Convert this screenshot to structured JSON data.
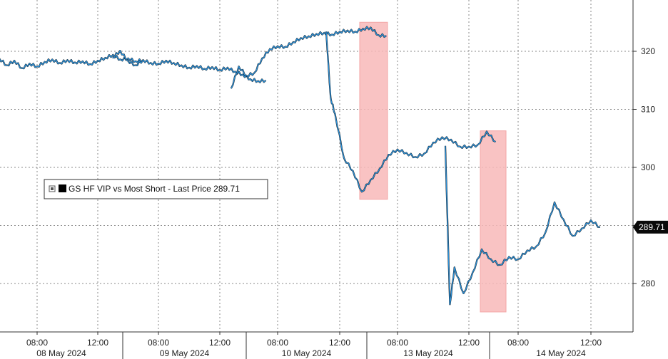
{
  "chart_data": {
    "type": "line",
    "title": "",
    "xlabel": "",
    "ylabel": "",
    "ylim": [
      270,
      330
    ],
    "y_ticks": [
      280,
      290,
      300,
      310,
      320
    ],
    "y_tick_labels": [
      "280",
      "",
      "300",
      "310",
      "320"
    ],
    "grid": true,
    "legend": {
      "placement": "left-center",
      "text": "GS HF VIP vs Most Short - Last Price 289.71"
    },
    "last_price": {
      "value": 289.71,
      "label": "289.71"
    },
    "colors": {
      "line": "#2d8fd5",
      "line_dark": "#0a0a0a",
      "highlight": "#f8b9b9",
      "highlight_edge": "#f19797",
      "last_badge": "#0a0a0a"
    },
    "sessions": [
      {
        "date": "08 May 2024",
        "time_ticks": [
          "08:00",
          "12:00"
        ],
        "x": [
          "05:00",
          "05:30",
          "06:00",
          "06:30",
          "07:00",
          "07:30",
          "08:00",
          "08:30",
          "09:00",
          "09:30",
          "10:00",
          "10:30",
          "11:00",
          "11:30",
          "12:00",
          "12:30",
          "13:00",
          "13:30",
          "14:00",
          "14:30",
          "15:00"
        ],
        "y": [
          318.2,
          318.8,
          317.6,
          318.4,
          317.1,
          317.9,
          317.4,
          318.2,
          318.6,
          318.0,
          318.5,
          318.1,
          318.3,
          317.8,
          318.4,
          318.9,
          319.4,
          318.6,
          318.8,
          318.3,
          318.5
        ]
      },
      {
        "date": "09 May 2024",
        "time_ticks": [
          "08:00",
          "12:00"
        ],
        "x": [
          "05:00",
          "05:30",
          "06:00",
          "06:30",
          "07:00",
          "07:30",
          "08:00",
          "08:30",
          "09:00",
          "09:30",
          "10:00",
          "10:30",
          "11:00",
          "11:30",
          "12:00",
          "12:30",
          "13:00",
          "13:30",
          "14:00",
          "14:30",
          "15:00"
        ],
        "y": [
          318.9,
          320.1,
          318.4,
          317.6,
          318.5,
          318.0,
          317.9,
          318.4,
          318.0,
          317.6,
          317.2,
          317.5,
          317.0,
          317.3,
          316.8,
          317.2,
          316.5,
          316.0,
          315.2,
          314.9,
          315.0
        ]
      },
      {
        "date": "10 May 2024",
        "time_ticks": [
          "08:00",
          "12:00"
        ],
        "x": [
          "05:00",
          "05:30",
          "06:00",
          "06:30",
          "07:00",
          "07:30",
          "08:00",
          "08:30",
          "09:00",
          "09:30",
          "10:00",
          "10:30",
          "11:00",
          "11:30",
          "12:00",
          "12:30",
          "13:00",
          "13:30",
          "14:00",
          "14:30",
          "15:00"
        ],
        "y": [
          313.6,
          317.4,
          315.8,
          316.3,
          318.8,
          320.4,
          320.9,
          320.8,
          321.6,
          322.3,
          322.6,
          323.0,
          323.2,
          322.9,
          323.4,
          323.6,
          323.4,
          323.9,
          324.1,
          322.8,
          322.7
        ]
      },
      {
        "date": "13 May 2024",
        "time_ticks": [
          "08:00",
          "12:00"
        ],
        "x": [
          "04:00",
          "04:15",
          "04:30",
          "05:00",
          "05:30",
          "06:00",
          "06:30",
          "07:00",
          "07:30",
          "08:00",
          "08:30",
          "09:00",
          "09:30",
          "10:00",
          "10:30",
          "11:00",
          "11:30",
          "12:00",
          "12:30",
          "13:00",
          "13:30"
        ],
        "y": [
          323.4,
          312.0,
          309.2,
          301.6,
          299.4,
          295.8,
          297.9,
          299.8,
          302.2,
          303.1,
          302.5,
          301.8,
          302.4,
          304.3,
          305.2,
          304.8,
          303.6,
          303.6,
          303.9,
          306.2,
          304.4
        ]
      },
      {
        "date": "14 May 2024",
        "time_ticks": [
          "08:00",
          "12:00"
        ],
        "x": [
          "04:00",
          "04:15",
          "04:30",
          "05:00",
          "05:30",
          "06:00",
          "06:30",
          "07:00",
          "07:30",
          "08:00",
          "08:30",
          "09:00",
          "09:30",
          "10:00",
          "10:30",
          "11:00",
          "11:30",
          "12:00",
          "12:30"
        ],
        "y": [
          303.7,
          276.4,
          282.8,
          278.3,
          281.9,
          285.9,
          284.2,
          283.2,
          284.6,
          284.2,
          285.7,
          286.4,
          288.8,
          294.0,
          291.0,
          288.2,
          289.5,
          290.9,
          289.71
        ]
      }
    ],
    "highlights": [
      {
        "x_start": "13 May 2024 04:00",
        "x_end": "13 May 2024 06:00",
        "y_min": 294.5,
        "y_max": 325.0
      },
      {
        "x_start": "14 May 2024 04:00",
        "x_end": "14 May 2024 06:00",
        "y_min": 275.1,
        "y_max": 306.3
      }
    ]
  }
}
